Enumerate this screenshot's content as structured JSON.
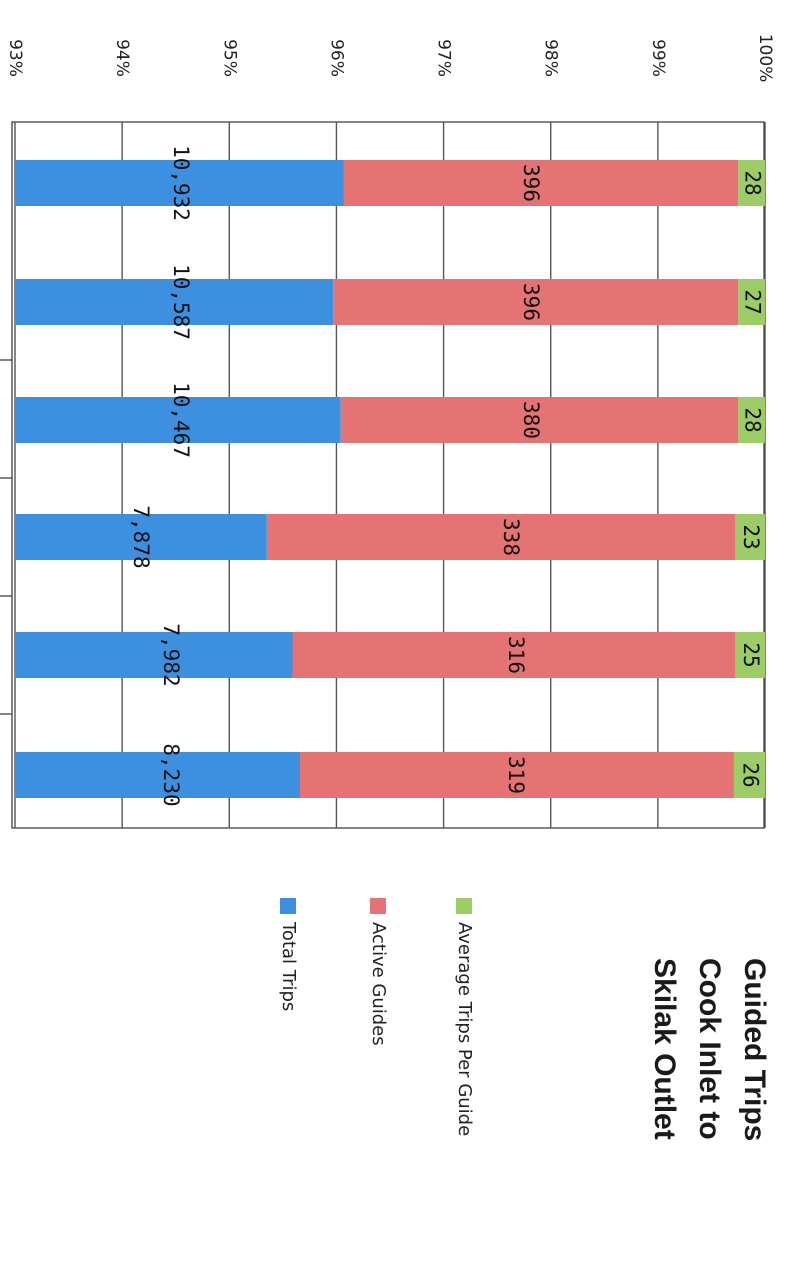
{
  "chart_data": {
    "type": "bar",
    "stacked": true,
    "orientation": "horizontal",
    "title_lines": [
      "Guided Trips",
      "Cook Inlet to",
      "Skilak Outlet"
    ],
    "xlim": [
      93,
      100
    ],
    "tick_labels": [
      "93%",
      "94%",
      "95%",
      "96%",
      "97%",
      "98%",
      "99%",
      "100%"
    ],
    "grid": true,
    "legend_position": "right",
    "series": [
      {
        "name": "Average Trips Per Guide",
        "color": "#9ccc65",
        "labels": [
          "28",
          "27",
          "28",
          "23",
          "25",
          "26"
        ]
      },
      {
        "name": "Active Guides",
        "color": "#e57373",
        "labels": [
          "396",
          "396",
          "380",
          "338",
          "316",
          "319"
        ]
      },
      {
        "name": "Total Trips",
        "color": "#3d8fe0",
        "labels": [
          "10,932",
          "10,587",
          "10,467",
          "7,878",
          "7,982",
          "8,230"
        ]
      }
    ],
    "cumulative_percent": {
      "average_trips_start": [
        99.75,
        99.75,
        99.75,
        99.72,
        99.72,
        99.71
      ],
      "blue_end": [
        96.07,
        95.97,
        96.04,
        95.35,
        95.59,
        95.66
      ]
    }
  }
}
